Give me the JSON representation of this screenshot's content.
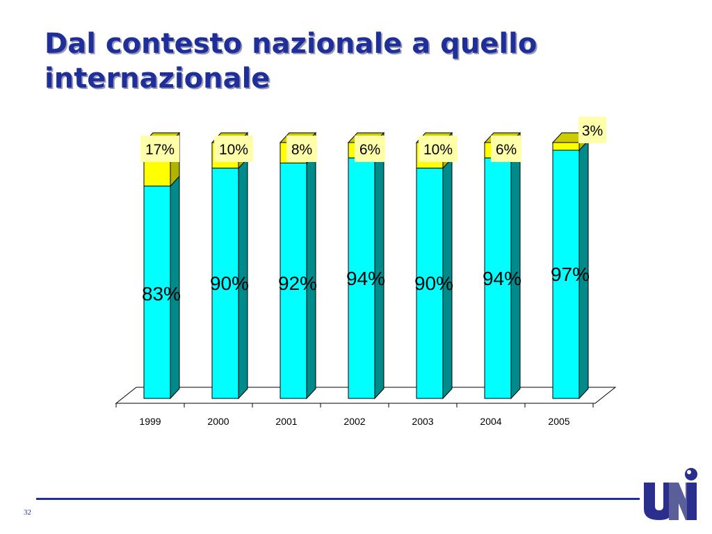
{
  "slide": {
    "title": "Dal contesto nazionale a quello internazionale",
    "page_number": "32"
  },
  "logo": {
    "name": "UNI logo"
  },
  "colors": {
    "bar_front": "#00ffff",
    "bar_side": "#008a8a",
    "bar_top": "#66ffff",
    "cap_front": "#ffff00",
    "cap_side": "#b2b200",
    "cap_top": "#cccc00",
    "label_box": "#ffffaa",
    "title": "#1f2f9a"
  },
  "chart_data": {
    "type": "bar",
    "stacked": true,
    "three_d": true,
    "categories": [
      "1999",
      "2000",
      "2001",
      "2002",
      "2003",
      "2004",
      "2005"
    ],
    "series": [
      {
        "values": [
          83,
          90,
          92,
          94,
          90,
          94,
          97
        ],
        "labels": [
          "83%",
          "90%",
          "92%",
          "94%",
          "90%",
          "94%",
          "97%"
        ]
      },
      {
        "values": [
          17,
          10,
          8,
          6,
          10,
          6,
          3
        ],
        "labels": [
          "17%",
          "10%",
          "8%",
          "6%",
          "10%",
          "6%",
          "3%"
        ]
      }
    ],
    "ylim": [
      0,
      100
    ],
    "grid": false,
    "legend": "none"
  }
}
